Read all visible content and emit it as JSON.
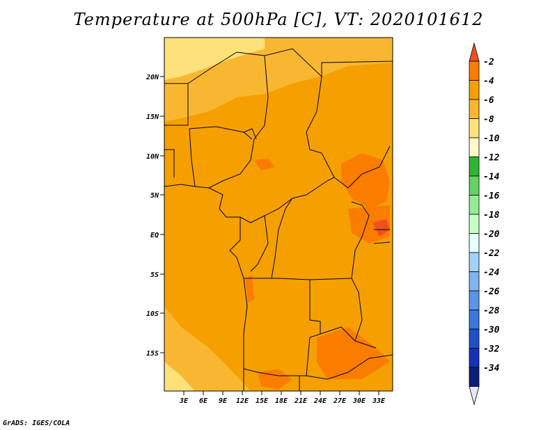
{
  "title": "Temperature at 500hPa [C], VT: 2020101612",
  "credit": "GrADS: IGES/COLA",
  "map": {
    "lat_labels": [
      "20N",
      "15N",
      "10N",
      "5N",
      "EQ",
      "5S",
      "10S",
      "15S"
    ],
    "lon_labels": [
      "3E",
      "6E",
      "9E",
      "12E",
      "15E",
      "18E",
      "21E",
      "24E",
      "27E",
      "30E",
      "33E"
    ]
  },
  "colorbar": {
    "labels": [
      "-2",
      "-4",
      "-6",
      "-8",
      "-10",
      "-12",
      "-14",
      "-16",
      "-18",
      "-20",
      "-22",
      "-24",
      "-26",
      "-28",
      "-30",
      "-32",
      "-34"
    ],
    "colors": [
      "#f0501e",
      "#fa7d00",
      "#f5a000",
      "#f9b731",
      "#fde27b",
      "#fffac8",
      "#32b432",
      "#64d264",
      "#96eb96",
      "#c8ffc8",
      "#e6ffff",
      "#a0d2fa",
      "#82b4f0",
      "#5a96e6",
      "#3c78dc",
      "#1e50c8",
      "#1432b4",
      "#0a1e78",
      "#e6e6fa"
    ]
  },
  "colors": {
    "warm_region": "#fa7d00",
    "mid_region": "#f5a000",
    "cool_region": "#f9b731",
    "coolest_region": "#fde27b"
  }
}
